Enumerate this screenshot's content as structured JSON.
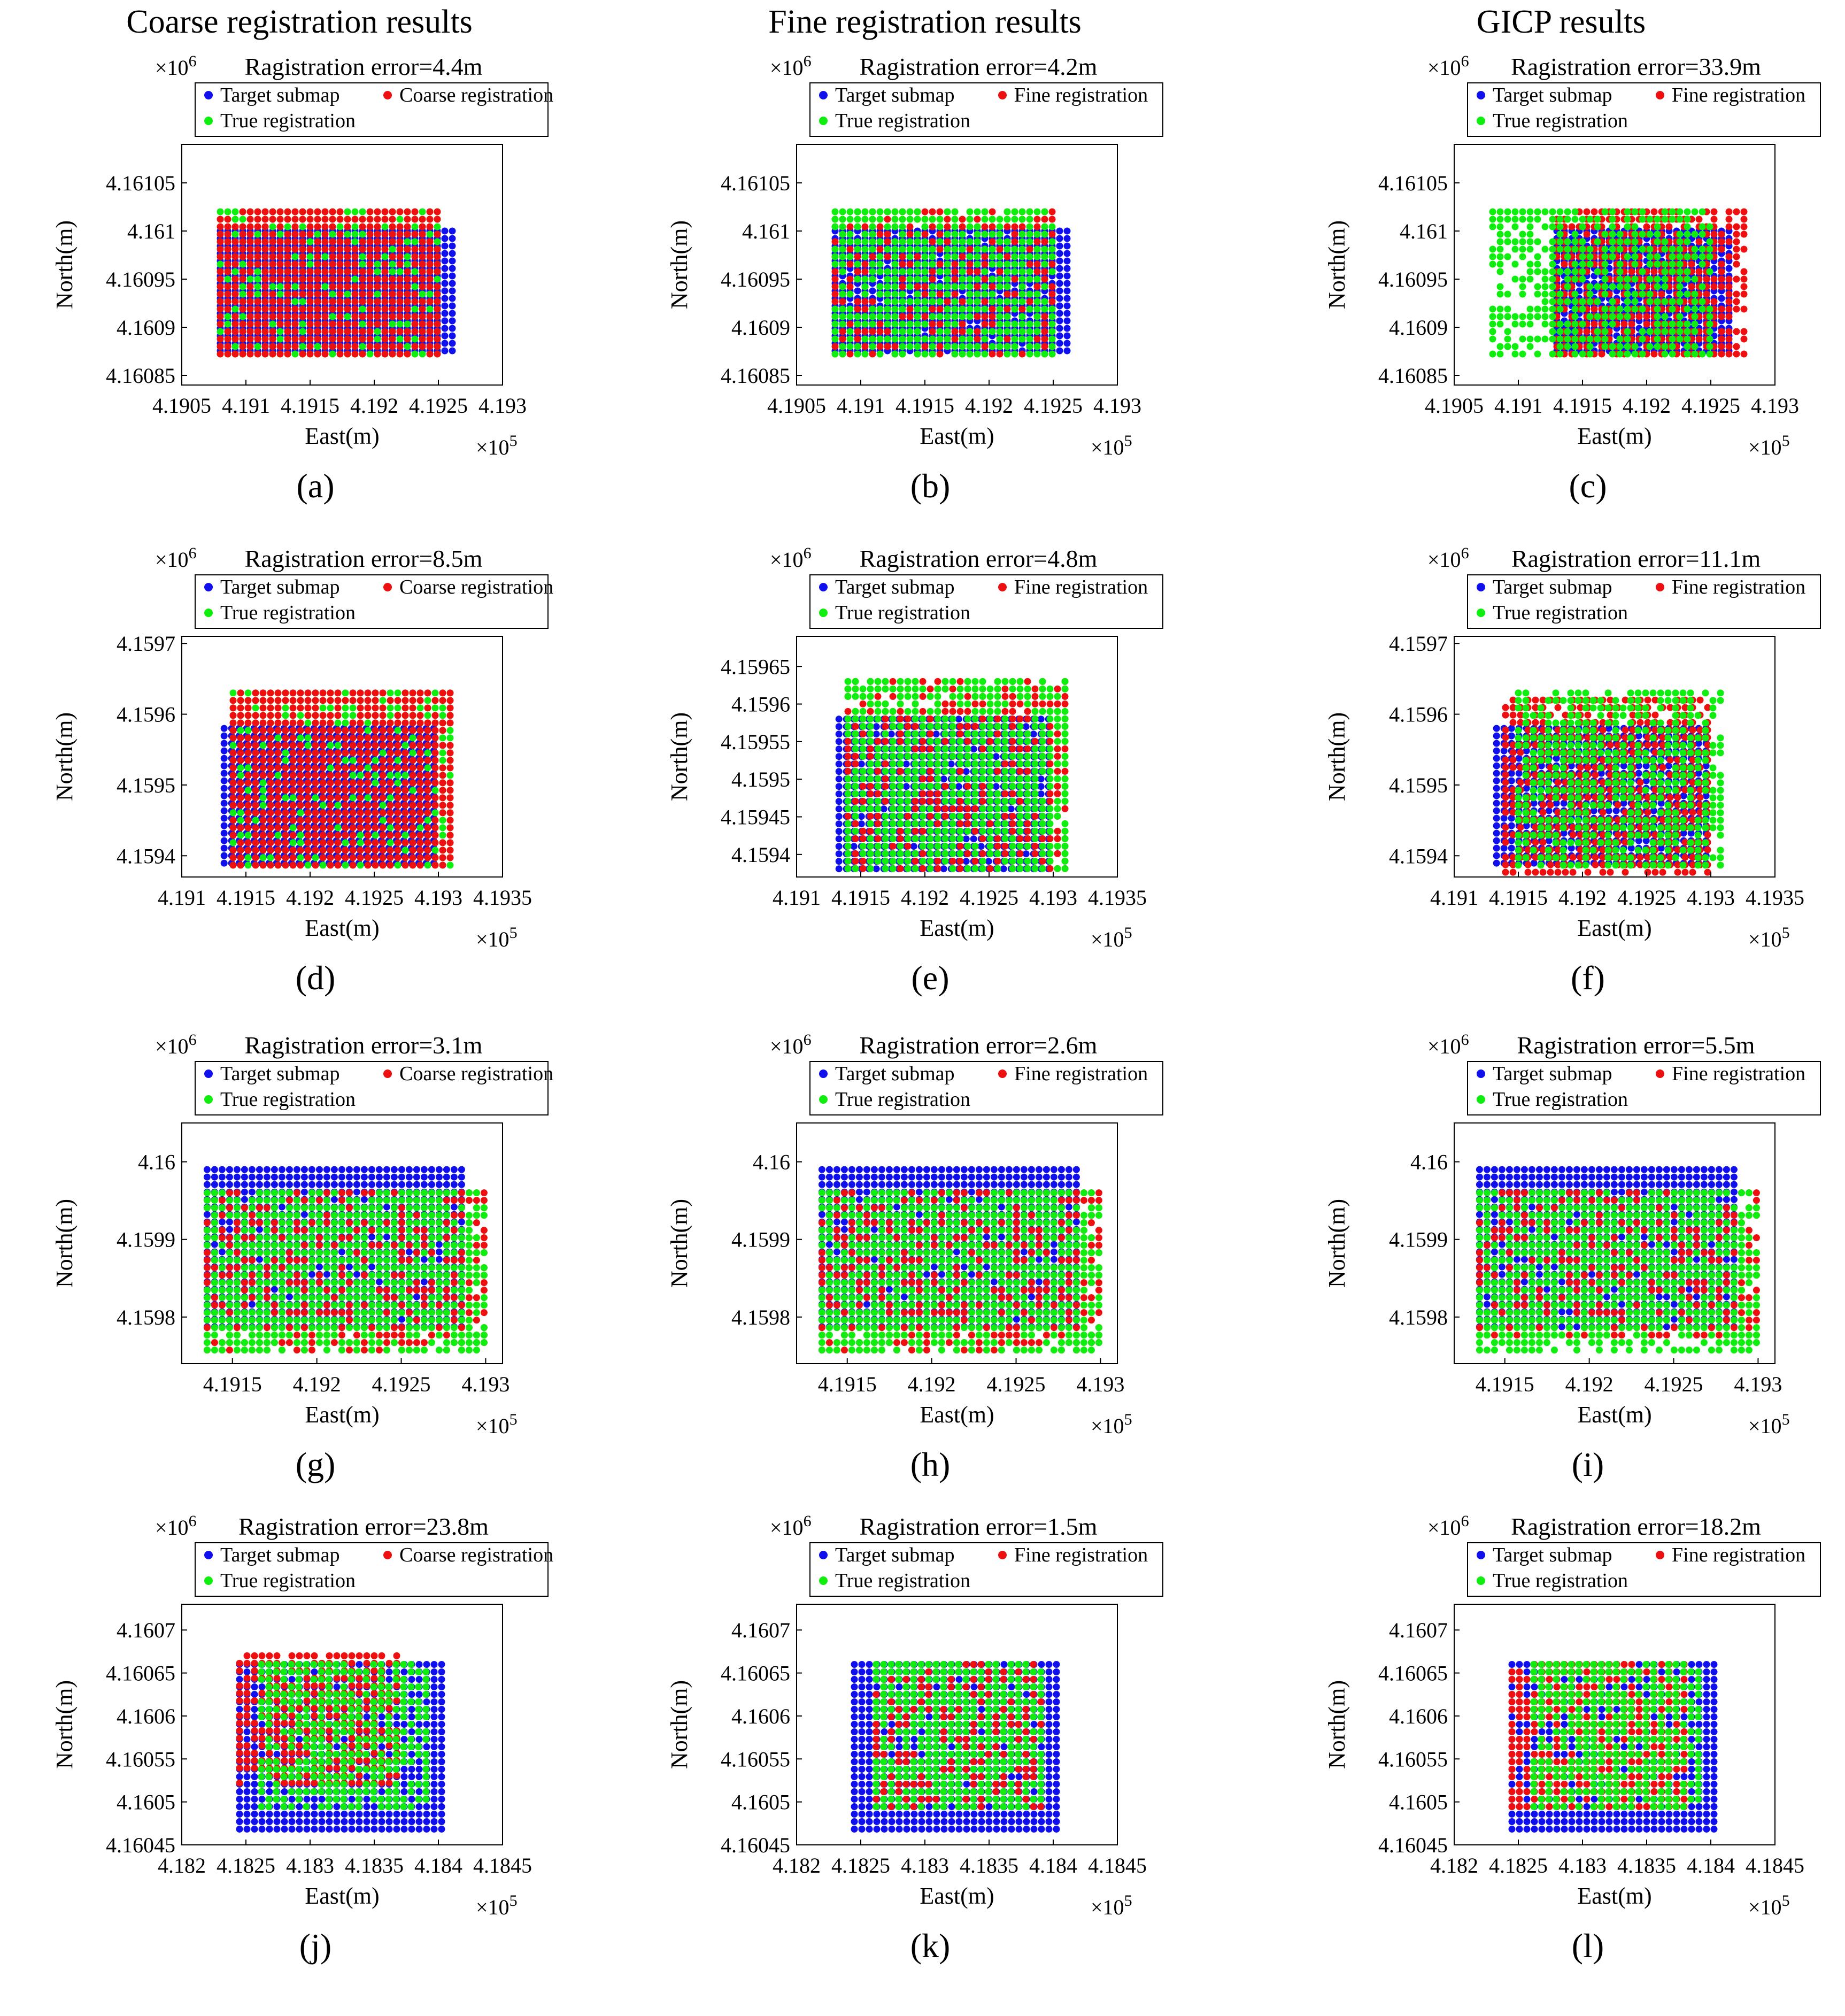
{
  "columns": [
    "Coarse registration results",
    "Fine registration results",
    "GICP results"
  ],
  "colors": {
    "target": "#1010ee",
    "registered": "#ee1010",
    "truth": "#10ee10"
  },
  "axis": {
    "xlabel": "East(m)",
    "ylabel": "North(m)",
    "xexp": "×10",
    "xexp_power": "5",
    "yexp": "×10",
    "yexp_power": "6"
  },
  "chart_data": [
    {
      "type": "scatter",
      "panel": "(a)",
      "title": "Ragistration error=4.4m",
      "legend": [
        "Target submap",
        "Coarse registration",
        "True registration"
      ],
      "xticks": [
        "4.1905",
        "4.191",
        "4.1915",
        "4.192",
        "4.1925",
        "4.193"
      ],
      "yticks": [
        "4.16085",
        "4.1609",
        "4.16095",
        "4.161",
        "4.16105"
      ],
      "xlim": [
        4.1905,
        4.193
      ],
      "ylim": [
        4.16084,
        4.16109
      ],
      "target": {
        "x": [
          4.1908,
          4.19265
        ],
        "y": [
          4.16087,
          4.161
        ]
      },
      "registered": {
        "x": [
          4.1908,
          4.1925
        ],
        "y": [
          4.16087,
          4.16102
        ]
      },
      "truth": {
        "x": [
          4.1908,
          4.1925
        ],
        "y": [
          4.16087,
          4.16102
        ]
      },
      "overlay": "registered"
    },
    {
      "type": "scatter",
      "panel": "(b)",
      "title": "Ragistration error=4.2m",
      "legend": [
        "Target submap",
        "Fine registration",
        "True registration"
      ],
      "xticks": [
        "4.1905",
        "4.191",
        "4.1915",
        "4.192",
        "4.1925",
        "4.193"
      ],
      "yticks": [
        "4.16085",
        "4.1609",
        "4.16095",
        "4.161",
        "4.16105"
      ],
      "xlim": [
        4.1905,
        4.193
      ],
      "ylim": [
        4.16084,
        4.16109
      ],
      "target": {
        "x": [
          4.1908,
          4.19265
        ],
        "y": [
          4.16087,
          4.161
        ]
      },
      "registered": {
        "x": [
          4.1908,
          4.1925
        ],
        "y": [
          4.16087,
          4.16102
        ]
      },
      "truth": {
        "x": [
          4.1908,
          4.1925
        ],
        "y": [
          4.16087,
          4.16102
        ]
      },
      "overlay": "mixed"
    },
    {
      "type": "scatter",
      "panel": "(c)",
      "title": "Ragistration error=33.9m",
      "legend": [
        "Target submap",
        "Fine registration",
        "True registration"
      ],
      "xticks": [
        "4.1905",
        "4.191",
        "4.1915",
        "4.192",
        "4.1925",
        "4.193"
      ],
      "yticks": [
        "4.16085",
        "4.1609",
        "4.16095",
        "4.161",
        "4.16105"
      ],
      "xlim": [
        4.1905,
        4.193
      ],
      "ylim": [
        4.16084,
        4.16109
      ],
      "target": {
        "x": [
          4.1913,
          4.19265
        ],
        "y": [
          4.16087,
          4.161
        ]
      },
      "registered": {
        "x": [
          4.1913,
          4.1928
        ],
        "y": [
          4.16087,
          4.16102
        ]
      },
      "truth": {
        "x": [
          4.1908,
          4.1925
        ],
        "y": [
          4.16087,
          4.16102
        ]
      },
      "overlay": "mixed"
    },
    {
      "type": "scatter",
      "panel": "(d)",
      "title": "Ragistration error=8.5m",
      "legend": [
        "Target submap",
        "Coarse registration",
        "True registration"
      ],
      "xticks": [
        "4.191",
        "4.1915",
        "4.192",
        "4.1925",
        "4.193",
        "4.1935"
      ],
      "yticks": [
        "4.1594",
        "4.1595",
        "4.1596",
        "4.1597"
      ],
      "xlim": [
        4.191,
        4.1935
      ],
      "ylim": [
        4.15937,
        4.15971
      ],
      "target": {
        "x": [
          4.19133,
          4.19298
        ],
        "y": [
          4.15938,
          4.15958
        ]
      },
      "registered": {
        "x": [
          4.1914,
          4.1931
        ],
        "y": [
          4.15938,
          4.15963
        ]
      },
      "truth": {
        "x": [
          4.1914,
          4.1931
        ],
        "y": [
          4.15938,
          4.15963
        ]
      },
      "overlay": "registered"
    },
    {
      "type": "scatter",
      "panel": "(e)",
      "title": "Ragistration error=4.8m",
      "legend": [
        "Target submap",
        "Fine registration",
        "True registration"
      ],
      "xticks": [
        "4.191",
        "4.1915",
        "4.192",
        "4.1925",
        "4.193",
        "4.1935"
      ],
      "yticks": [
        "4.1594",
        "4.15945",
        "4.1595",
        "4.15955",
        "4.1596",
        "4.15965"
      ],
      "xlim": [
        4.191,
        4.1935
      ],
      "ylim": [
        4.15937,
        4.15969
      ],
      "target": {
        "x": [
          4.19133,
          4.19298
        ],
        "y": [
          4.15938,
          4.15958
        ]
      },
      "registered": {
        "x": [
          4.1914,
          4.1931
        ],
        "y": [
          4.15938,
          4.15963
        ]
      },
      "truth": {
        "x": [
          4.1914,
          4.1931
        ],
        "y": [
          4.15938,
          4.15963
        ]
      },
      "overlay": "mixed"
    },
    {
      "type": "scatter",
      "panel": "(f)",
      "title": "Ragistration error=11.1m",
      "legend": [
        "Target submap",
        "Fine registration",
        "True registration"
      ],
      "xticks": [
        "4.191",
        "4.1915",
        "4.192",
        "4.1925",
        "4.193",
        "4.1935"
      ],
      "yticks": [
        "4.1594",
        "4.1595",
        "4.1596",
        "4.1597"
      ],
      "xlim": [
        4.191,
        4.1935
      ],
      "ylim": [
        4.15937,
        4.15971
      ],
      "target": {
        "x": [
          4.19133,
          4.19298
        ],
        "y": [
          4.15938,
          4.15958
        ]
      },
      "registered": {
        "x": [
          4.1914,
          4.193
        ],
        "y": [
          4.15937,
          4.15962
        ]
      },
      "truth": {
        "x": [
          4.1915,
          4.1931
        ],
        "y": [
          4.15938,
          4.15963
        ]
      },
      "overlay": "mixed"
    },
    {
      "type": "scatter",
      "panel": "(g)",
      "title": "Ragistration error=3.1m",
      "legend": [
        "Target submap",
        "Coarse registration",
        "True registration"
      ],
      "xticks": [
        "4.1915",
        "4.192",
        "4.1925",
        "4.193"
      ],
      "yticks": [
        "4.1598",
        "4.1599",
        "4.16"
      ],
      "xlim": [
        4.1912,
        4.1931
      ],
      "ylim": [
        4.15974,
        4.16005
      ],
      "target": {
        "x": [
          4.19135,
          4.1929
        ],
        "y": [
          4.15978,
          4.15999
        ]
      },
      "registered": {
        "x": [
          4.19135,
          4.193
        ],
        "y": [
          4.15975,
          4.15996
        ]
      },
      "truth": {
        "x": [
          4.19135,
          4.193
        ],
        "y": [
          4.15975,
          4.15996
        ]
      },
      "overlay": "mixed"
    },
    {
      "type": "scatter",
      "panel": "(h)",
      "title": "Ragistration error=2.6m",
      "legend": [
        "Target submap",
        "Fine registration",
        "True registration"
      ],
      "xticks": [
        "4.1915",
        "4.192",
        "4.1925",
        "4.193"
      ],
      "yticks": [
        "4.1598",
        "4.1599",
        "4.16"
      ],
      "xlim": [
        4.1912,
        4.1931
      ],
      "ylim": [
        4.15974,
        4.16005
      ],
      "target": {
        "x": [
          4.19135,
          4.1929
        ],
        "y": [
          4.15978,
          4.15999
        ]
      },
      "registered": {
        "x": [
          4.19135,
          4.193
        ],
        "y": [
          4.15975,
          4.15996
        ]
      },
      "truth": {
        "x": [
          4.19135,
          4.193
        ],
        "y": [
          4.15975,
          4.15996
        ]
      },
      "overlay": "mixed"
    },
    {
      "type": "scatter",
      "panel": "(i)",
      "title": "Ragistration error=5.5m",
      "legend": [
        "Target submap",
        "Fine registration",
        "True registration"
      ],
      "xticks": [
        "4.1915",
        "4.192",
        "4.1925",
        "4.193"
      ],
      "yticks": [
        "4.1598",
        "4.1599",
        "4.16"
      ],
      "xlim": [
        4.1912,
        4.1931
      ],
      "ylim": [
        4.15974,
        4.16005
      ],
      "target": {
        "x": [
          4.19135,
          4.1929
        ],
        "y": [
          4.15978,
          4.15999
        ]
      },
      "registered": {
        "x": [
          4.19135,
          4.193
        ],
        "y": [
          4.15977,
          4.15996
        ]
      },
      "truth": {
        "x": [
          4.19135,
          4.193
        ],
        "y": [
          4.15975,
          4.15996
        ]
      },
      "overlay": "mixed"
    },
    {
      "type": "scatter",
      "panel": "(j)",
      "title": "Ragistration error=23.8m",
      "legend": [
        "Target submap",
        "Coarse registration",
        "True registration"
      ],
      "xticks": [
        "4.182",
        "4.1825",
        "4.183",
        "4.1835",
        "4.184",
        "4.1845"
      ],
      "yticks": [
        "4.16045",
        "4.1605",
        "4.16055",
        "4.1606",
        "4.16065",
        "4.1607"
      ],
      "xlim": [
        4.182,
        4.1845
      ],
      "ylim": [
        4.16045,
        4.16073
      ],
      "target": {
        "x": [
          4.18245,
          4.18408
        ],
        "y": [
          4.16046,
          4.16066
        ]
      },
      "registered": {
        "x": [
          4.18245,
          4.18368
        ],
        "y": [
          4.16052,
          4.16067
        ]
      },
      "truth": {
        "x": [
          4.18262,
          4.18395
        ],
        "y": [
          4.16049,
          4.16066
        ]
      },
      "overlay": "mixed"
    },
    {
      "type": "scatter",
      "panel": "(k)",
      "title": "Ragistration error=1.5m",
      "legend": [
        "Target submap",
        "Fine registration",
        "True registration"
      ],
      "xticks": [
        "4.182",
        "4.1825",
        "4.183",
        "4.1835",
        "4.184",
        "4.1845"
      ],
      "yticks": [
        "4.16045",
        "4.1605",
        "4.16055",
        "4.1606",
        "4.16065",
        "4.1607"
      ],
      "xlim": [
        4.182,
        4.1845
      ],
      "ylim": [
        4.16045,
        4.16073
      ],
      "target": {
        "x": [
          4.18245,
          4.18408
        ],
        "y": [
          4.16046,
          4.16066
        ]
      },
      "registered": {
        "x": [
          4.18262,
          4.18395
        ],
        "y": [
          4.16049,
          4.16066
        ]
      },
      "truth": {
        "x": [
          4.18262,
          4.18395
        ],
        "y": [
          4.16049,
          4.16066
        ]
      },
      "overlay": "mixed"
    },
    {
      "type": "scatter",
      "panel": "(l)",
      "title": "Ragistration error=18.2m",
      "legend": [
        "Target submap",
        "Fine registration",
        "True registration"
      ],
      "xticks": [
        "4.182",
        "4.1825",
        "4.183",
        "4.1835",
        "4.184",
        "4.1845"
      ],
      "yticks": [
        "4.16045",
        "4.1605",
        "4.16055",
        "4.1606",
        "4.16065",
        "4.1607"
      ],
      "xlim": [
        4.182,
        4.1845
      ],
      "ylim": [
        4.16045,
        4.16073
      ],
      "target": {
        "x": [
          4.18245,
          4.18408
        ],
        "y": [
          4.16046,
          4.16066
        ]
      },
      "registered": {
        "x": [
          4.18245,
          4.1838
        ],
        "y": [
          4.16049,
          4.16066
        ]
      },
      "truth": {
        "x": [
          4.18262,
          4.18395
        ],
        "y": [
          4.16049,
          4.16066
        ]
      },
      "overlay": "mixed"
    }
  ]
}
